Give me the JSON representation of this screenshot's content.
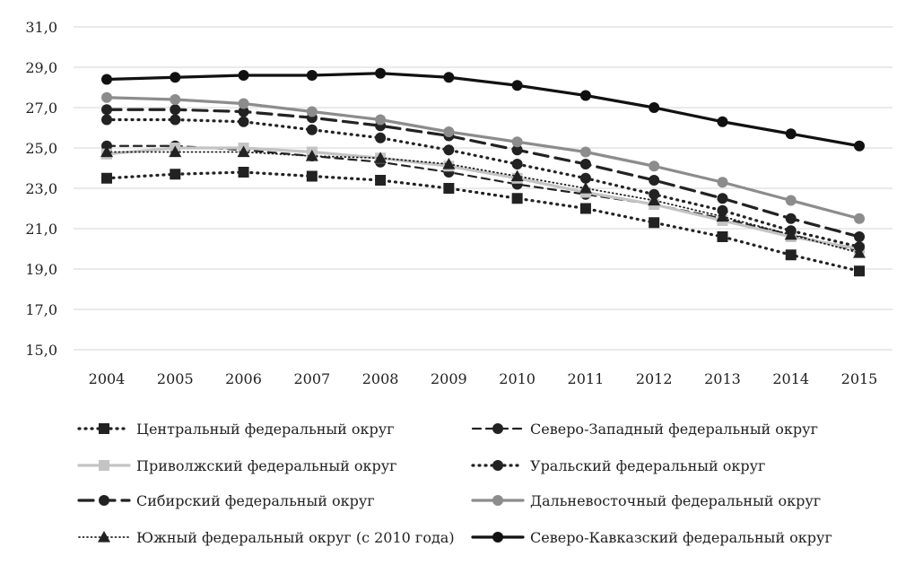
{
  "chart_data": {
    "type": "line",
    "x": [
      "2004",
      "2005",
      "2006",
      "2007",
      "2008",
      "2009",
      "2010",
      "2011",
      "2012",
      "2013",
      "2014",
      "2015"
    ],
    "ylim": [
      15.0,
      31.0
    ],
    "yticks": [
      "15,0",
      "17,0",
      "19,0",
      "21,0",
      "23,0",
      "25,0",
      "27,0",
      "29,0",
      "31,0"
    ],
    "grid": true,
    "legend_position": "bottom",
    "series": [
      {
        "name": "Центральный федеральный округ",
        "values": [
          23.5,
          23.7,
          23.8,
          23.6,
          23.4,
          23.0,
          22.5,
          22.0,
          21.3,
          20.6,
          19.7,
          18.9
        ],
        "color": "#222222",
        "dash": "dotted",
        "marker": "square"
      },
      {
        "name": "Северо-Западный федеральный округ",
        "values": [
          25.1,
          25.1,
          24.9,
          24.6,
          24.3,
          23.8,
          23.2,
          22.7,
          22.2,
          21.5,
          20.7,
          19.9
        ],
        "color": "#222222",
        "dash": "dashed",
        "marker": "circle"
      },
      {
        "name": "Приволжский федеральный округ",
        "values": [
          24.7,
          25.0,
          25.0,
          24.8,
          24.5,
          24.1,
          23.5,
          22.8,
          22.2,
          21.4,
          20.6,
          20.0
        ],
        "color": "#c4c4c4",
        "dash": "solid",
        "marker": "square"
      },
      {
        "name": "Уральский федеральный округ",
        "values": [
          26.4,
          26.4,
          26.3,
          25.9,
          25.5,
          24.9,
          24.2,
          23.5,
          22.7,
          21.9,
          20.9,
          20.1
        ],
        "color": "#222222",
        "dash": "dotted",
        "marker": "circle"
      },
      {
        "name": "Сибирский федеральный округ",
        "values": [
          26.9,
          26.9,
          26.8,
          26.5,
          26.1,
          25.6,
          24.9,
          24.2,
          23.4,
          22.5,
          21.5,
          20.6
        ],
        "color": "#222222",
        "dash": "longdash",
        "marker": "circle"
      },
      {
        "name": "Дальневосточный федеральный округ",
        "values": [
          27.5,
          27.4,
          27.2,
          26.8,
          26.4,
          25.8,
          25.3,
          24.8,
          24.1,
          23.3,
          22.4,
          21.5
        ],
        "color": "#8c8c8c",
        "dash": "solid",
        "marker": "circle"
      },
      {
        "name": "Южный федеральный округ (с 2010 года)",
        "values": [
          24.8,
          24.8,
          24.8,
          24.6,
          24.5,
          24.2,
          23.6,
          23.0,
          22.4,
          21.6,
          20.7,
          19.8
        ],
        "color": "#222222",
        "dash": "finedotted",
        "marker": "triangle"
      },
      {
        "name": "Северо-Кавказский федеральный округ",
        "values": [
          28.4,
          28.5,
          28.6,
          28.6,
          28.7,
          28.5,
          28.1,
          27.6,
          27.0,
          26.3,
          25.7,
          25.1
        ],
        "color": "#111111",
        "dash": "solid",
        "marker": "circle"
      }
    ]
  }
}
